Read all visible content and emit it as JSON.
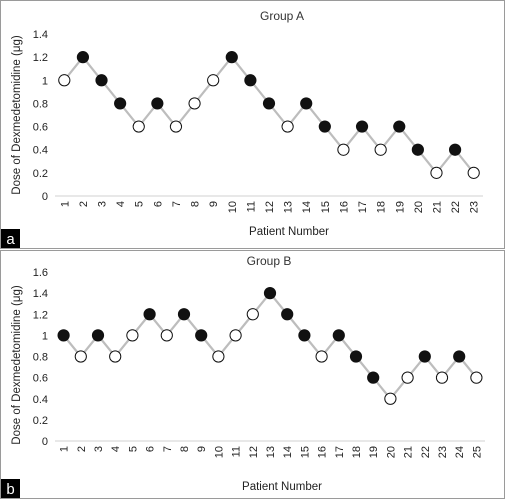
{
  "chart_data": [
    {
      "panel_tag": "a",
      "type": "line",
      "title": "Group A",
      "xlabel": "Patient Number",
      "ylabel": "Dose of Dexmedetomidine (μg)",
      "ylim": [
        0,
        1.4
      ],
      "y_ticks": [
        0,
        0.2,
        0.4,
        0.6,
        0.8,
        1,
        1.2,
        1.4
      ],
      "y_tick_labels": [
        "0",
        "0.2",
        "0.4",
        "0.6",
        "0.8",
        "1",
        "1.2",
        "1.4"
      ],
      "x": [
        1,
        2,
        3,
        4,
        5,
        6,
        7,
        8,
        9,
        10,
        11,
        12,
        13,
        14,
        15,
        16,
        17,
        18,
        19,
        20,
        21,
        22,
        23
      ],
      "values": [
        1.0,
        1.2,
        1.0,
        0.8,
        0.6,
        0.8,
        0.6,
        0.8,
        1.0,
        1.2,
        1.0,
        0.8,
        0.6,
        0.8,
        0.6,
        0.4,
        0.6,
        0.4,
        0.6,
        0.4,
        0.2,
        0.4,
        0.2
      ],
      "filled": [
        false,
        true,
        true,
        true,
        false,
        true,
        false,
        false,
        false,
        true,
        true,
        true,
        false,
        true,
        true,
        false,
        true,
        false,
        true,
        true,
        false,
        true,
        false
      ],
      "grid": false,
      "colors": {
        "line": "#bdbdbd",
        "filled_marker": "#111111",
        "open_marker_fill": "#ffffff",
        "marker_stroke": "#111111"
      }
    },
    {
      "panel_tag": "b",
      "type": "line",
      "title": "Group B",
      "xlabel": "Patient Number",
      "ylabel": "Dose of Dexmedetomidine (μg)",
      "ylim": [
        0,
        1.6
      ],
      "y_ticks": [
        0,
        0.2,
        0.4,
        0.6,
        0.8,
        1,
        1.2,
        1.4,
        1.6
      ],
      "y_tick_labels": [
        "0",
        "0.2",
        "0.4",
        "0.6",
        "0.8",
        "1",
        "1.2",
        "1.4",
        "1.6"
      ],
      "x": [
        1,
        2,
        3,
        4,
        5,
        6,
        7,
        8,
        9,
        10,
        11,
        12,
        13,
        14,
        15,
        16,
        17,
        18,
        19,
        20,
        21,
        22,
        23,
        24,
        25
      ],
      "values": [
        1.0,
        0.8,
        1.0,
        0.8,
        1.0,
        1.2,
        1.0,
        1.2,
        1.0,
        0.8,
        1.0,
        1.2,
        1.4,
        1.2,
        1.0,
        0.8,
        1.0,
        0.8,
        0.6,
        0.4,
        0.6,
        0.8,
        0.6,
        0.8,
        0.6
      ],
      "filled": [
        true,
        false,
        true,
        false,
        false,
        true,
        false,
        true,
        true,
        false,
        false,
        false,
        true,
        true,
        true,
        false,
        true,
        true,
        true,
        false,
        false,
        true,
        false,
        true,
        false
      ],
      "grid": false,
      "colors": {
        "line": "#bdbdbd",
        "filled_marker": "#111111",
        "open_marker_fill": "#ffffff",
        "marker_stroke": "#111111"
      }
    }
  ]
}
